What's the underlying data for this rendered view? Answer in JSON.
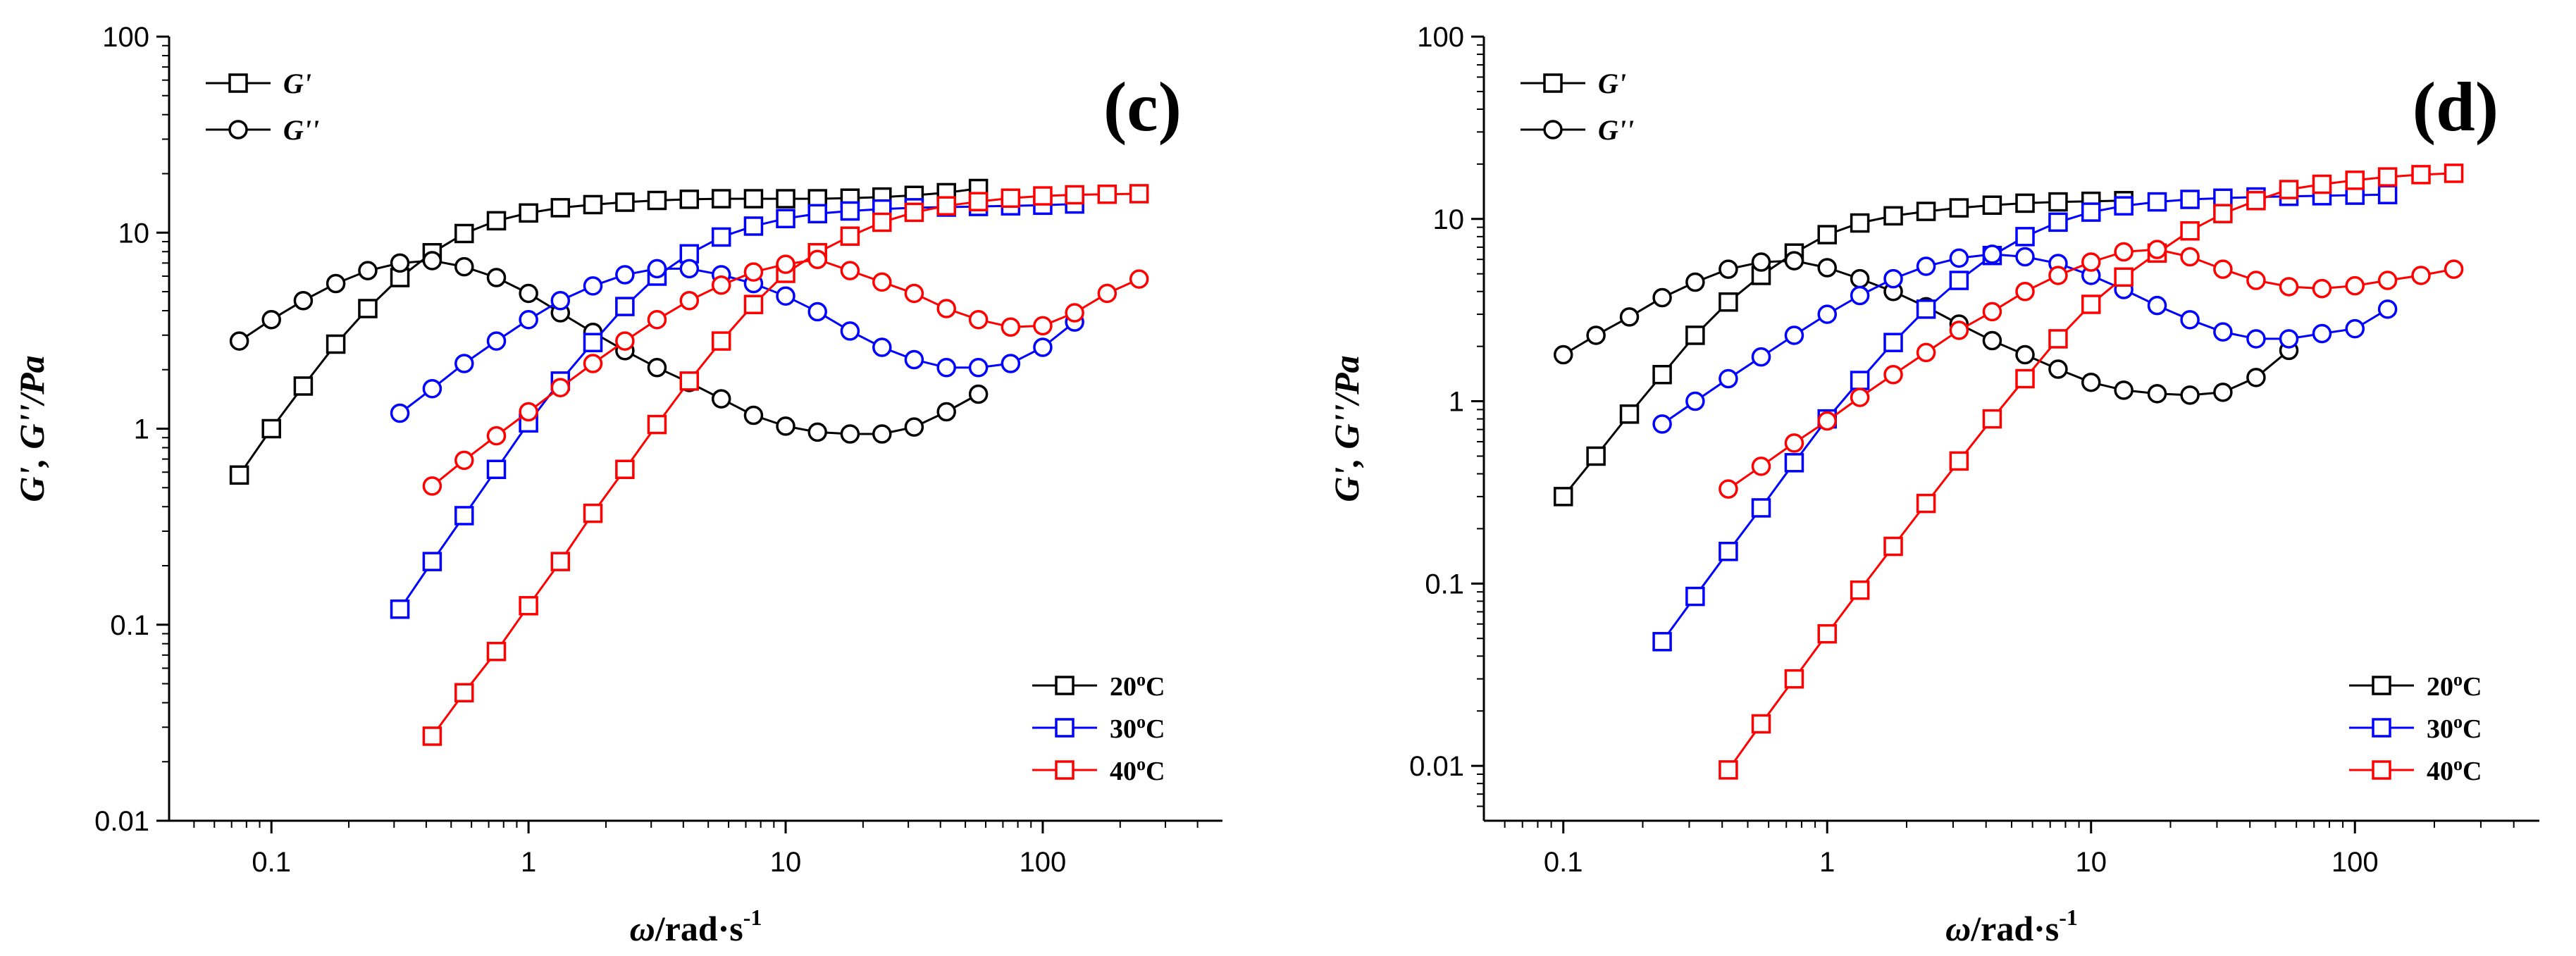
{
  "chart_data": [
    {
      "type": "scatter",
      "panel_label": "(c)",
      "xlabel_symbol": "ω",
      "xlabel_unit": "/rad·s",
      "xlabel_exp": "-1",
      "ylabel": "G', G''/Pa",
      "x_scale": "log",
      "y_scale": "log",
      "xlim": [
        0.04,
        500
      ],
      "ylim": [
        0.01,
        100
      ],
      "x_tick_labels": [
        "0.1",
        "1",
        "10",
        "100"
      ],
      "x_tick_values": [
        0.1,
        1,
        10,
        100
      ],
      "y_tick_labels": [
        "0.01",
        "0.1",
        "1",
        "10",
        "100"
      ],
      "y_tick_values": [
        0.01,
        0.1,
        1,
        10,
        100
      ],
      "legend_markers": [
        {
          "label": "G'",
          "marker": "square"
        },
        {
          "label": "G''",
          "marker": "circle"
        }
      ],
      "legend_temps": [
        "20oC",
        "30oC",
        "40oC"
      ],
      "series": [
        {
          "name": "20oC G'",
          "color": "#000000",
          "marker": "square",
          "x": [
            0.075,
            0.1,
            0.133,
            0.178,
            0.237,
            0.316,
            0.422,
            0.562,
            0.75,
            1.0,
            1.33,
            1.78,
            2.37,
            3.16,
            4.22,
            5.62,
            7.5,
            10,
            13.3,
            17.8,
            23.7,
            31.6,
            42.2,
            56.2
          ],
          "y": [
            0.58,
            1.0,
            1.65,
            2.7,
            4.1,
            5.9,
            7.9,
            9.9,
            11.5,
            12.6,
            13.4,
            13.9,
            14.3,
            14.6,
            14.8,
            14.9,
            14.9,
            14.9,
            14.9,
            15.0,
            15.2,
            15.5,
            16.0,
            16.8
          ]
        },
        {
          "name": "20oC G''",
          "color": "#000000",
          "marker": "circle",
          "x": [
            0.075,
            0.1,
            0.133,
            0.178,
            0.237,
            0.316,
            0.422,
            0.562,
            0.75,
            1.0,
            1.33,
            1.78,
            2.37,
            3.16,
            4.22,
            5.62,
            7.5,
            10,
            13.3,
            17.8,
            23.7,
            31.6,
            42.2,
            56.2
          ],
          "y": [
            2.8,
            3.6,
            4.5,
            5.5,
            6.4,
            7.0,
            7.2,
            6.7,
            5.9,
            4.9,
            3.9,
            3.1,
            2.5,
            2.05,
            1.72,
            1.42,
            1.17,
            1.03,
            0.96,
            0.94,
            0.94,
            1.02,
            1.22,
            1.5
          ]
        },
        {
          "name": "30oC G'",
          "color": "#0000ff",
          "marker": "square",
          "x": [
            0.316,
            0.422,
            0.562,
            0.75,
            1.0,
            1.33,
            1.78,
            2.37,
            3.16,
            4.22,
            5.62,
            7.5,
            10,
            13.3,
            17.8,
            23.7,
            31.6,
            42.2,
            56.2,
            75,
            100,
            133
          ],
          "y": [
            0.12,
            0.21,
            0.36,
            0.62,
            1.07,
            1.75,
            2.75,
            4.2,
            6.0,
            7.8,
            9.5,
            10.8,
            11.8,
            12.5,
            12.9,
            13.2,
            13.4,
            13.5,
            13.6,
            13.7,
            13.8,
            14.0
          ]
        },
        {
          "name": "30oC G''",
          "color": "#0000ff",
          "marker": "circle",
          "x": [
            0.316,
            0.422,
            0.562,
            0.75,
            1.0,
            1.33,
            1.78,
            2.37,
            3.16,
            4.22,
            5.62,
            7.5,
            10,
            13.3,
            17.8,
            23.7,
            31.6,
            42.2,
            56.2,
            75,
            100,
            133
          ],
          "y": [
            1.2,
            1.6,
            2.15,
            2.8,
            3.6,
            4.5,
            5.35,
            6.1,
            6.55,
            6.55,
            6.1,
            5.5,
            4.75,
            3.95,
            3.15,
            2.6,
            2.25,
            2.05,
            2.05,
            2.15,
            2.6,
            3.5
          ]
        },
        {
          "name": "40oC G'",
          "color": "#ff0000",
          "marker": "square",
          "x": [
            0.422,
            0.562,
            0.75,
            1.0,
            1.33,
            1.78,
            2.37,
            3.16,
            4.22,
            5.62,
            7.5,
            10,
            13.3,
            17.8,
            23.7,
            31.6,
            42.2,
            56.2,
            75,
            100,
            133,
            178,
            237
          ],
          "y": [
            0.027,
            0.045,
            0.073,
            0.125,
            0.21,
            0.37,
            0.62,
            1.05,
            1.75,
            2.8,
            4.3,
            6.2,
            7.9,
            9.6,
            11.3,
            12.7,
            13.7,
            14.4,
            15.0,
            15.4,
            15.6,
            15.7,
            15.8
          ]
        },
        {
          "name": "40oC G''",
          "color": "#ff0000",
          "marker": "circle",
          "x": [
            0.422,
            0.562,
            0.75,
            1.0,
            1.33,
            1.78,
            2.37,
            3.16,
            4.22,
            5.62,
            7.5,
            10,
            13.3,
            17.8,
            23.7,
            31.6,
            42.2,
            56.2,
            75,
            100,
            133,
            178,
            237
          ],
          "y": [
            0.51,
            0.69,
            0.92,
            1.22,
            1.62,
            2.15,
            2.8,
            3.6,
            4.5,
            5.4,
            6.3,
            6.9,
            7.3,
            6.4,
            5.6,
            4.9,
            4.1,
            3.6,
            3.3,
            3.35,
            3.9,
            4.9,
            5.8
          ]
        }
      ]
    },
    {
      "type": "scatter",
      "panel_label": "(d)",
      "xlabel_symbol": "ω",
      "xlabel_unit": "/rad·s",
      "xlabel_exp": "-1",
      "ylabel": "G', G''/Pa",
      "x_scale": "log",
      "y_scale": "log",
      "xlim": [
        0.05,
        500
      ],
      "ylim": [
        0.005,
        100
      ],
      "x_tick_labels": [
        "0.1",
        "1",
        "10",
        "100"
      ],
      "x_tick_values": [
        0.1,
        1,
        10,
        100
      ],
      "y_tick_labels": [
        "0.01",
        "0.1",
        "1",
        "10",
        "100"
      ],
      "y_tick_values": [
        0.01,
        0.1,
        1,
        10,
        100
      ],
      "legend_markers": [
        {
          "label": "G'",
          "marker": "square"
        },
        {
          "label": "G''",
          "marker": "circle"
        }
      ],
      "legend_temps": [
        "20oC",
        "30oC",
        "40oC"
      ],
      "series": [
        {
          "name": "20oC G'",
          "color": "#000000",
          "marker": "square",
          "x": [
            0.1,
            0.133,
            0.178,
            0.237,
            0.316,
            0.422,
            0.562,
            0.75,
            1.0,
            1.33,
            1.78,
            2.37,
            3.16,
            4.22,
            5.62,
            7.5,
            10,
            13.3
          ],
          "y": [
            0.3,
            0.5,
            0.85,
            1.4,
            2.3,
            3.5,
            4.9,
            6.5,
            8.2,
            9.5,
            10.4,
            11.0,
            11.5,
            11.9,
            12.2,
            12.4,
            12.5,
            12.6
          ]
        },
        {
          "name": "20oC G''",
          "color": "#000000",
          "marker": "circle",
          "x": [
            0.1,
            0.133,
            0.178,
            0.237,
            0.316,
            0.422,
            0.562,
            0.75,
            1.0,
            1.33,
            1.78,
            2.37,
            3.16,
            4.22,
            5.62,
            7.5,
            10,
            13.3,
            17.8,
            23.7,
            31.6,
            42.2,
            56.2
          ],
          "y": [
            1.8,
            2.3,
            2.9,
            3.7,
            4.5,
            5.3,
            5.8,
            5.9,
            5.4,
            4.7,
            4.0,
            3.3,
            2.65,
            2.15,
            1.8,
            1.5,
            1.27,
            1.15,
            1.1,
            1.08,
            1.12,
            1.35,
            1.9
          ]
        },
        {
          "name": "30oC G'",
          "color": "#0000ff",
          "marker": "square",
          "x": [
            0.237,
            0.316,
            0.422,
            0.562,
            0.75,
            1.0,
            1.33,
            1.78,
            2.37,
            3.16,
            4.22,
            5.62,
            7.5,
            10,
            13.3,
            17.8,
            23.7,
            31.6,
            42.2,
            56.2,
            75,
            100,
            133
          ],
          "y": [
            0.048,
            0.085,
            0.15,
            0.26,
            0.46,
            0.8,
            1.3,
            2.1,
            3.2,
            4.6,
            6.3,
            8.0,
            9.6,
            10.9,
            11.8,
            12.4,
            12.8,
            13.0,
            13.2,
            13.3,
            13.4,
            13.5,
            13.6
          ]
        },
        {
          "name": "30oC G''",
          "color": "#0000ff",
          "marker": "circle",
          "x": [
            0.237,
            0.316,
            0.422,
            0.562,
            0.75,
            1.0,
            1.33,
            1.78,
            2.37,
            3.16,
            4.22,
            5.62,
            7.5,
            10,
            13.3,
            17.8,
            23.7,
            31.6,
            42.2,
            56.2,
            75,
            100,
            133
          ],
          "y": [
            0.75,
            1.0,
            1.33,
            1.75,
            2.3,
            3.0,
            3.8,
            4.7,
            5.5,
            6.1,
            6.4,
            6.2,
            5.7,
            4.9,
            4.1,
            3.35,
            2.8,
            2.4,
            2.2,
            2.2,
            2.35,
            2.5,
            3.2
          ]
        },
        {
          "name": "40oC G'",
          "color": "#ff0000",
          "marker": "square",
          "x": [
            0.422,
            0.562,
            0.75,
            1.0,
            1.33,
            1.78,
            2.37,
            3.16,
            4.22,
            5.62,
            7.5,
            10,
            13.3,
            17.8,
            23.7,
            31.6,
            42.2,
            56.2,
            75,
            100,
            133,
            178,
            237
          ],
          "y": [
            0.0095,
            0.017,
            0.03,
            0.053,
            0.092,
            0.16,
            0.275,
            0.47,
            0.8,
            1.33,
            2.2,
            3.4,
            4.8,
            6.5,
            8.6,
            10.7,
            12.6,
            14.5,
            15.5,
            16.3,
            17.0,
            17.5,
            17.8
          ]
        },
        {
          "name": "40oC G''",
          "color": "#ff0000",
          "marker": "circle",
          "x": [
            0.422,
            0.562,
            0.75,
            1.0,
            1.33,
            1.78,
            2.37,
            3.16,
            4.22,
            5.62,
            7.5,
            10,
            13.3,
            17.8,
            23.7,
            31.6,
            42.2,
            56.2,
            75,
            100,
            133,
            178,
            237
          ],
          "y": [
            0.33,
            0.44,
            0.59,
            0.78,
            1.05,
            1.4,
            1.85,
            2.45,
            3.1,
            4.0,
            4.9,
            5.8,
            6.6,
            6.8,
            6.2,
            5.3,
            4.6,
            4.25,
            4.15,
            4.3,
            4.6,
            4.9,
            5.3
          ]
        }
      ]
    }
  ]
}
